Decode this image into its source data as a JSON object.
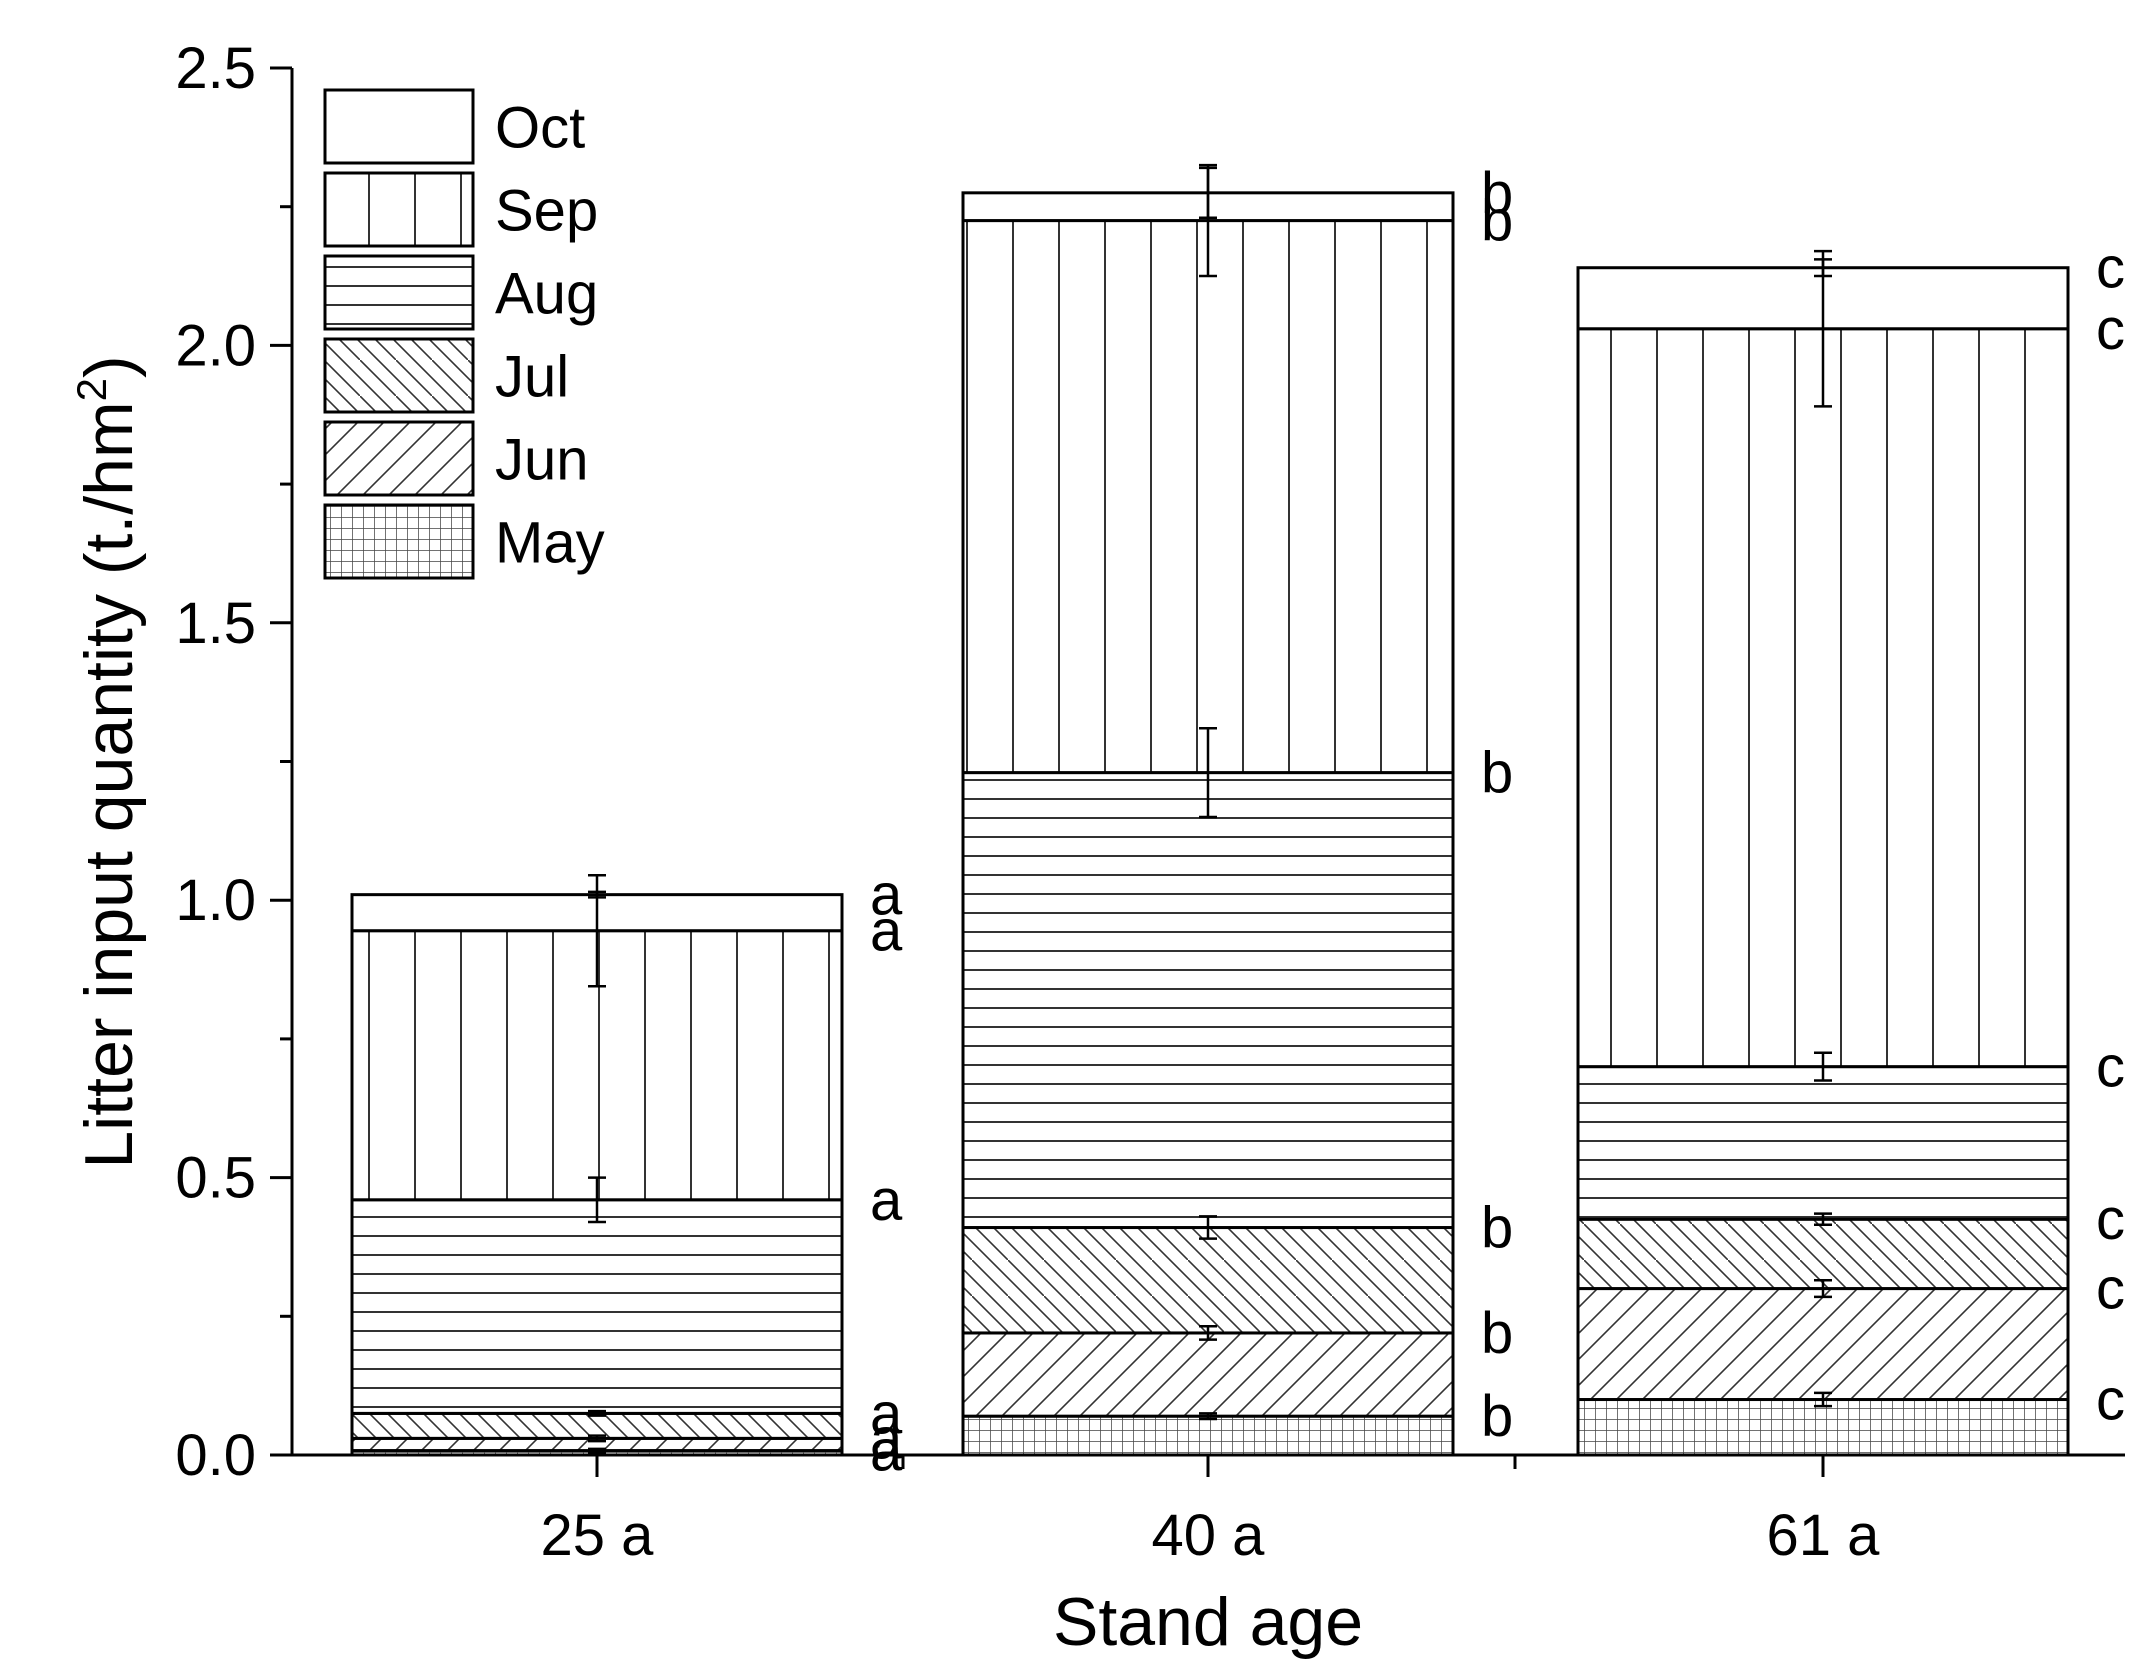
{
  "chart_data": {
    "type": "bar",
    "stacked": true,
    "title": "",
    "xlabel": "Stand age",
    "ylabel": "Litter input quantity (t./hm",
    "ylabel_sup": "2",
    "ylabel_tail": ")",
    "ylim": [
      0,
      2.5
    ],
    "yticks": [
      "0.0",
      "0.5",
      "1.0",
      "1.5",
      "2.0",
      "2.5"
    ],
    "categories": [
      "25 a",
      "40 a",
      "61 a"
    ],
    "legend_position": "top-left",
    "series": [
      {
        "name": "May",
        "pattern": "grid",
        "values": [
          0.008,
          0.07,
          0.1
        ],
        "errors": [
          0.003,
          0.005,
          0.012
        ],
        "sig": [
          "a",
          "b",
          "c"
        ]
      },
      {
        "name": "Jun",
        "pattern": "diag-up",
        "values": [
          0.022,
          0.15,
          0.2
        ],
        "errors": [
          0.005,
          0.012,
          0.015
        ],
        "sig": [
          "a",
          "b",
          "c"
        ]
      },
      {
        "name": "Jul",
        "pattern": "diag-down",
        "values": [
          0.045,
          0.19,
          0.125
        ],
        "errors": [
          0.004,
          0.02,
          0.01
        ],
        "sig": [
          "a",
          "b",
          "c"
        ]
      },
      {
        "name": "Aug",
        "pattern": "horizontal",
        "values": [
          0.385,
          0.82,
          0.275
        ],
        "errors": [
          0.04,
          0.08,
          0.025
        ],
        "sig": [
          "a",
          "b",
          "c"
        ]
      },
      {
        "name": "Sep",
        "pattern": "vertical",
        "values": [
          0.485,
          0.995,
          1.33
        ],
        "errors": [
          0.1,
          0.1,
          0.14
        ],
        "sig": [
          "a",
          "b",
          "c"
        ]
      },
      {
        "name": "Oct",
        "pattern": "blank",
        "values": [
          0.065,
          0.05,
          0.11
        ],
        "errors": [
          0.005,
          0.045,
          0.015
        ],
        "sig": [
          "a",
          "b",
          "c"
        ]
      }
    ]
  }
}
